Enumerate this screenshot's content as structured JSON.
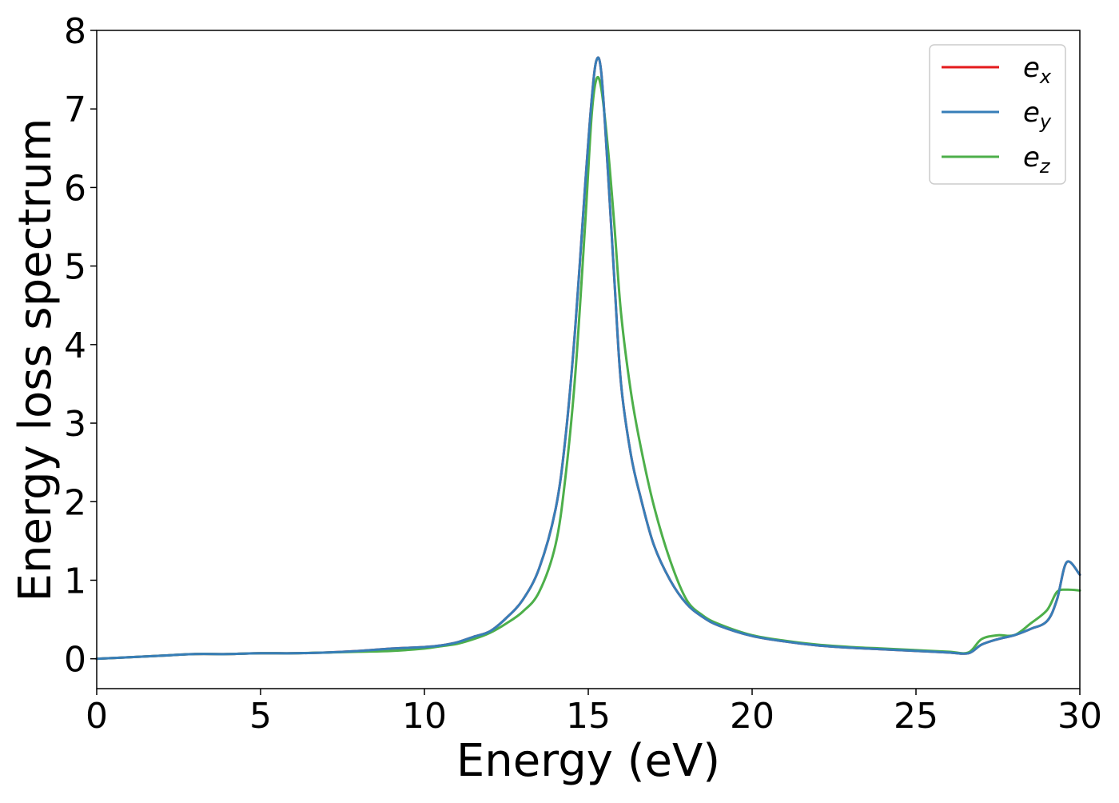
{
  "chart_data": {
    "type": "line",
    "title": "",
    "xlabel": "Energy (eV)",
    "ylabel": "Energy loss spectrum",
    "xlim": [
      0,
      30
    ],
    "ylim": [
      -0.38,
      8
    ],
    "xticks": [
      0,
      5,
      10,
      15,
      20,
      25,
      30
    ],
    "yticks": [
      0,
      1,
      2,
      3,
      4,
      5,
      6,
      7,
      8
    ],
    "grid": false,
    "legend_position": "top-right",
    "series": [
      {
        "name": "e_x",
        "legend_base": "e",
        "legend_sub": "x",
        "color": "#e41a1c",
        "x": [
          0,
          1,
          2,
          3,
          4,
          5,
          6,
          7,
          8,
          9,
          10,
          10.5,
          11,
          11.5,
          12,
          12.5,
          13,
          13.5,
          14,
          14.3,
          14.6,
          14.9,
          15.1,
          15.25,
          15.4,
          15.6,
          15.8,
          16.0,
          16.3,
          16.6,
          17.0,
          17.5,
          18.0,
          18.5,
          19,
          20,
          21,
          22,
          23,
          24,
          25,
          26,
          26.6,
          27,
          27.5,
          28,
          28.5,
          29,
          29.3,
          29.6,
          30
        ],
        "y": [
          0.0,
          0.02,
          0.04,
          0.06,
          0.06,
          0.07,
          0.07,
          0.08,
          0.1,
          0.13,
          0.15,
          0.17,
          0.21,
          0.28,
          0.35,
          0.52,
          0.75,
          1.15,
          1.9,
          2.8,
          4.2,
          6.0,
          7.1,
          7.62,
          7.45,
          6.2,
          4.8,
          3.5,
          2.6,
          2.05,
          1.45,
          1.0,
          0.7,
          0.53,
          0.42,
          0.29,
          0.22,
          0.17,
          0.14,
          0.12,
          0.1,
          0.08,
          0.07,
          0.18,
          0.25,
          0.3,
          0.38,
          0.48,
          0.75,
          1.23,
          1.07
        ]
      },
      {
        "name": "e_y",
        "legend_base": "e",
        "legend_sub": "y",
        "color": "#377eb8",
        "x": [
          0,
          1,
          2,
          3,
          4,
          5,
          6,
          7,
          8,
          9,
          10,
          10.5,
          11,
          11.5,
          12,
          12.5,
          13,
          13.5,
          14,
          14.3,
          14.6,
          14.9,
          15.1,
          15.25,
          15.4,
          15.6,
          15.8,
          16.0,
          16.3,
          16.6,
          17.0,
          17.5,
          18.0,
          18.5,
          19,
          20,
          21,
          22,
          23,
          24,
          25,
          26,
          26.6,
          27,
          27.5,
          28,
          28.5,
          29,
          29.3,
          29.6,
          30
        ],
        "y": [
          0.0,
          0.02,
          0.04,
          0.06,
          0.06,
          0.07,
          0.07,
          0.08,
          0.1,
          0.13,
          0.15,
          0.17,
          0.21,
          0.28,
          0.35,
          0.52,
          0.75,
          1.15,
          1.9,
          2.8,
          4.2,
          6.0,
          7.1,
          7.62,
          7.45,
          6.2,
          4.8,
          3.5,
          2.6,
          2.05,
          1.45,
          1.0,
          0.7,
          0.53,
          0.42,
          0.29,
          0.22,
          0.17,
          0.14,
          0.12,
          0.1,
          0.08,
          0.07,
          0.18,
          0.25,
          0.3,
          0.38,
          0.48,
          0.75,
          1.23,
          1.07
        ]
      },
      {
        "name": "e_z",
        "legend_base": "e",
        "legend_sub": "z",
        "color": "#4daf4a",
        "x": [
          0,
          1,
          2,
          3,
          4,
          5,
          6,
          7,
          8,
          9,
          10,
          10.5,
          11,
          11.5,
          12,
          12.5,
          13,
          13.5,
          14,
          14.3,
          14.6,
          14.9,
          15.1,
          15.25,
          15.4,
          15.6,
          15.8,
          16.0,
          16.3,
          16.6,
          17.0,
          17.5,
          18.0,
          18.5,
          19,
          20,
          21,
          22,
          23,
          24,
          25,
          26,
          26.6,
          27,
          27.5,
          28,
          28.5,
          29,
          29.3,
          29.6,
          30
        ],
        "y": [
          0.0,
          0.02,
          0.04,
          0.06,
          0.06,
          0.07,
          0.07,
          0.08,
          0.09,
          0.1,
          0.13,
          0.16,
          0.19,
          0.25,
          0.33,
          0.45,
          0.6,
          0.85,
          1.45,
          2.3,
          3.6,
          5.5,
          6.9,
          7.38,
          7.25,
          6.5,
          5.5,
          4.4,
          3.4,
          2.7,
          1.95,
          1.25,
          0.75,
          0.55,
          0.44,
          0.3,
          0.23,
          0.18,
          0.15,
          0.13,
          0.11,
          0.09,
          0.08,
          0.25,
          0.3,
          0.3,
          0.45,
          0.62,
          0.85,
          0.88,
          0.87
        ]
      }
    ]
  }
}
